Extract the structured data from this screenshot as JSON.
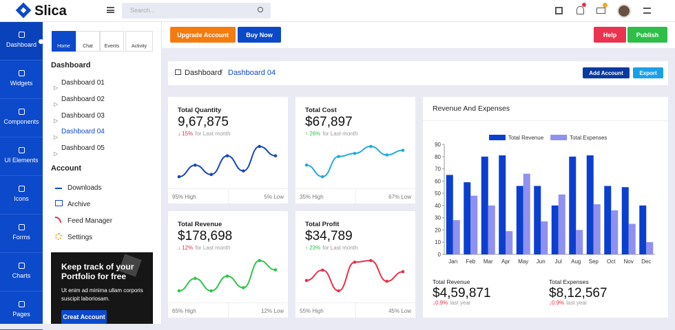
{
  "header": {
    "logo": "Slica",
    "search_placeholder": "Search..."
  },
  "sidebar": {
    "items": [
      "Dashboard",
      "Widgets",
      "Components",
      "UI Elements",
      "Icons",
      "Forms",
      "Charts",
      "Pages"
    ]
  },
  "panel": {
    "tabs": [
      "Home",
      "Chat",
      "Events",
      "Activity"
    ],
    "dashboard_heading": "Dashboard",
    "dashboard_links": [
      "Dashboard 01",
      "Dashboard 02",
      "Dashboard 03",
      "Dashboard 04",
      "Dashboard 05"
    ],
    "account_heading": "Account",
    "account_links": [
      "Downloads",
      "Archive",
      "Feed Manager",
      "Settings"
    ],
    "promo": {
      "title": "Keep track of your Portfolio for free",
      "text": "Ut enim ad minima ullam corporis suscipit laboriosam.",
      "button": "Creat Account"
    }
  },
  "toolbar": {
    "buttons": [
      "Upgrade Account",
      "Buy Now",
      "Help",
      "Publish"
    ]
  },
  "breadcrumb": {
    "items": [
      "Dashboard",
      "Dashboard 04"
    ],
    "separator": "/",
    "buttons": [
      "Add Account",
      "Export"
    ]
  },
  "stats": [
    {
      "title": "Total Quantity",
      "value": "9,67,875",
      "change": "15%",
      "change_text": "for Last month",
      "high": "95% High",
      "low": "5% Low",
      "color": "#1746b8",
      "trend": [
        5,
        21,
        8,
        34,
        13,
        47,
        34
      ]
    },
    {
      "title": "Total Cost",
      "value": "$67,897",
      "change": "26%",
      "change_text": "for Last month",
      "high": "35% High",
      "low": "67% Low",
      "color": "#22a8e2",
      "trend": [
        25,
        10,
        36,
        40,
        49,
        38,
        44
      ]
    },
    {
      "title": "Total Revenue",
      "value": "$178,698",
      "change": "12%",
      "change_text": "for Last month",
      "high": "65% High",
      "low": "12% Low",
      "color": "#2ec44a",
      "trend": [
        4,
        20,
        4,
        23,
        8,
        43,
        31
      ]
    },
    {
      "title": "Total Profit",
      "value": "$34,789",
      "change": "23%",
      "change_text": "for Last month",
      "high": "55% High",
      "low": "45% Low",
      "color": "#e8304a",
      "trend": [
        17,
        30,
        4,
        40,
        42,
        16,
        28
      ]
    }
  ],
  "revenue_chart": {
    "type": "bar",
    "title": "Revenue And Expenses",
    "categories": [
      "Jan",
      "Feb",
      "Mar",
      "Apr",
      "May",
      "Jun",
      "Jul",
      "Aug",
      "Sep",
      "Oct",
      "Nov",
      "Dec"
    ],
    "series": [
      {
        "name": "Total Revenue",
        "color": "#0b3fcf",
        "values": [
          65,
          59,
          80,
          81,
          56,
          56,
          40,
          80,
          81,
          56,
          55,
          40
        ]
      },
      {
        "name": "Total Expenses",
        "color": "#9090ef",
        "values": [
          28,
          48,
          40,
          19,
          66,
          27,
          49,
          20,
          41,
          36,
          25,
          10
        ]
      }
    ],
    "ylim": [
      0,
      90
    ],
    "yticks": [
      0,
      10,
      20,
      30,
      40,
      50,
      60,
      70,
      80,
      90
    ],
    "summary": [
      {
        "label": "Total Revenue",
        "value": "$4,59,871",
        "change": "0.9%",
        "change_text": "last year"
      },
      {
        "label": "Total Expenses",
        "value": "$8,12,567",
        "change": "0.9%",
        "change_text": "last year"
      }
    ]
  }
}
